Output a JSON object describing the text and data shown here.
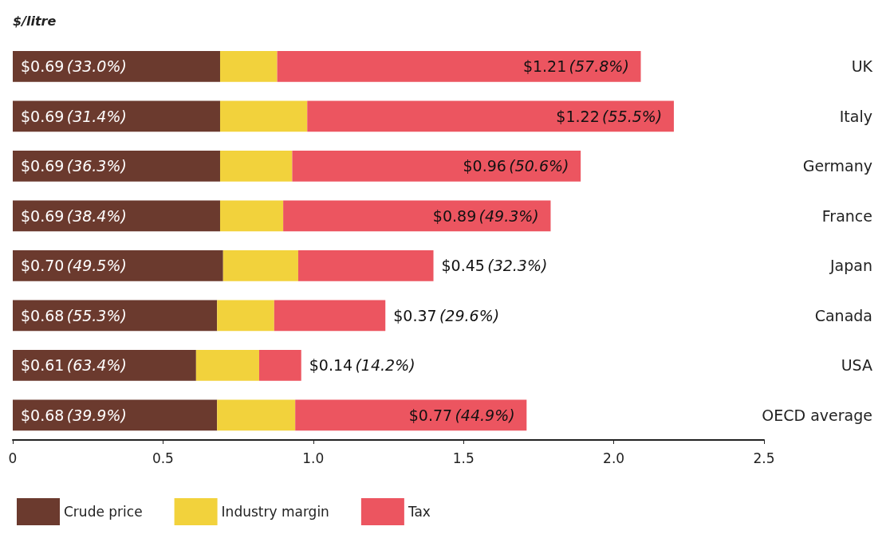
{
  "chart_data": {
    "type": "bar",
    "orientation": "horizontal",
    "stacked": true,
    "annotations": [
      "$/litre"
    ],
    "categories": [
      "UK",
      "Italy",
      "Germany",
      "France",
      "Japan",
      "Canada",
      "USA",
      "OECD average"
    ],
    "series": [
      {
        "name": "Crude price",
        "color": "#6b3a2e",
        "values": [
          0.69,
          0.69,
          0.69,
          0.69,
          0.7,
          0.68,
          0.61,
          0.68
        ],
        "value_labels": [
          "$0.69 (33.0%)",
          "$0.69 (31.4%)",
          "$0.69 (36.3%)",
          "$0.69 (38.4%)",
          "$0.70 (49.5%)",
          "$0.68 (55.3%)",
          "$0.61 (63.4%)",
          "$0.68 (39.9%)"
        ]
      },
      {
        "name": "Industry margin",
        "color": "#f2d23c",
        "values": [
          0.19,
          0.29,
          0.24,
          0.21,
          0.25,
          0.19,
          0.21,
          0.26
        ]
      },
      {
        "name": "Tax",
        "color": "#ec5560",
        "values": [
          1.21,
          1.22,
          0.96,
          0.89,
          0.45,
          0.37,
          0.14,
          0.77
        ],
        "value_labels": [
          "$1.21 (57.8%)",
          "$1.22 (55.5%)",
          "$0.96 (50.6%)",
          "$0.89 (49.3%)",
          "$0.45 (32.3%)",
          "$0.37 (29.6%)",
          "$0.14 (14.2%)",
          "$0.77 (44.9%)"
        ]
      }
    ],
    "xlim": [
      0,
      2.5
    ],
    "xticks": [
      0,
      0.5,
      {
        "value": 1,
        "label": "1.0"
      },
      1.5,
      {
        "value": 2,
        "label": "2.0"
      },
      2.5
    ],
    "grid": false,
    "legend": "bottom left"
  }
}
